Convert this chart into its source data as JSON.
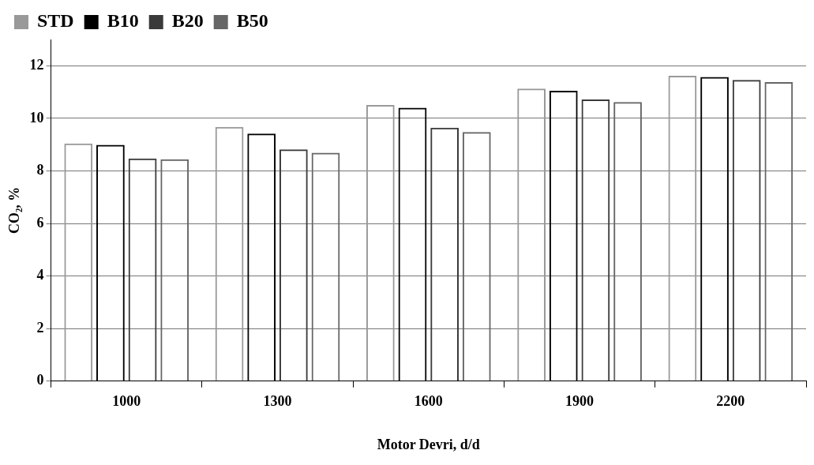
{
  "chart_data": {
    "type": "bar",
    "xlabel": "Motor Devri, d/d",
    "ylabel": "CO₂, %",
    "categories": [
      "1000",
      "1300",
      "1600",
      "1900",
      "2200"
    ],
    "series": [
      {
        "name": "STD",
        "color": "#999999",
        "values": [
          9.04,
          9.67,
          10.51,
          11.13,
          11.62
        ]
      },
      {
        "name": "B10",
        "color": "#000000",
        "values": [
          8.99,
          9.42,
          10.4,
          11.05,
          11.57
        ]
      },
      {
        "name": "B20",
        "color": "#3a3a3a",
        "values": [
          8.47,
          8.82,
          9.64,
          10.72,
          11.46
        ]
      },
      {
        "name": "B50",
        "color": "#666666",
        "values": [
          8.44,
          8.69,
          9.48,
          10.62,
          11.38
        ]
      }
    ],
    "ylim": [
      0,
      13
    ],
    "yticks": [
      0,
      2,
      4,
      6,
      8,
      10,
      12
    ],
    "grid": "y",
    "legend": "top left"
  }
}
